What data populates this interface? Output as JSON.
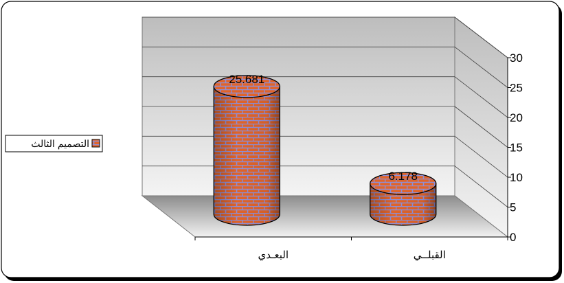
{
  "chart_data": {
    "type": "bar",
    "categories": [
      "البعـدي",
      "القبلــي"
    ],
    "series": [
      {
        "name": "التصميم الثالث",
        "values": [
          25.681,
          6.178
        ]
      }
    ],
    "data_labels": [
      "25.681",
      "6.178"
    ],
    "y_ticks": [
      "0",
      "5",
      "10",
      "15",
      "20",
      "25",
      "30"
    ],
    "ylim": [
      0,
      30
    ],
    "grid": true,
    "legend_position": "left",
    "colors": {
      "brick": "#e0642a",
      "mortar": "#8f8fd6",
      "wall_top": "#bdbdbd",
      "wall_bottom": "#f4f4f4",
      "floor": "#a6a6a6",
      "frame": "#000000"
    }
  }
}
